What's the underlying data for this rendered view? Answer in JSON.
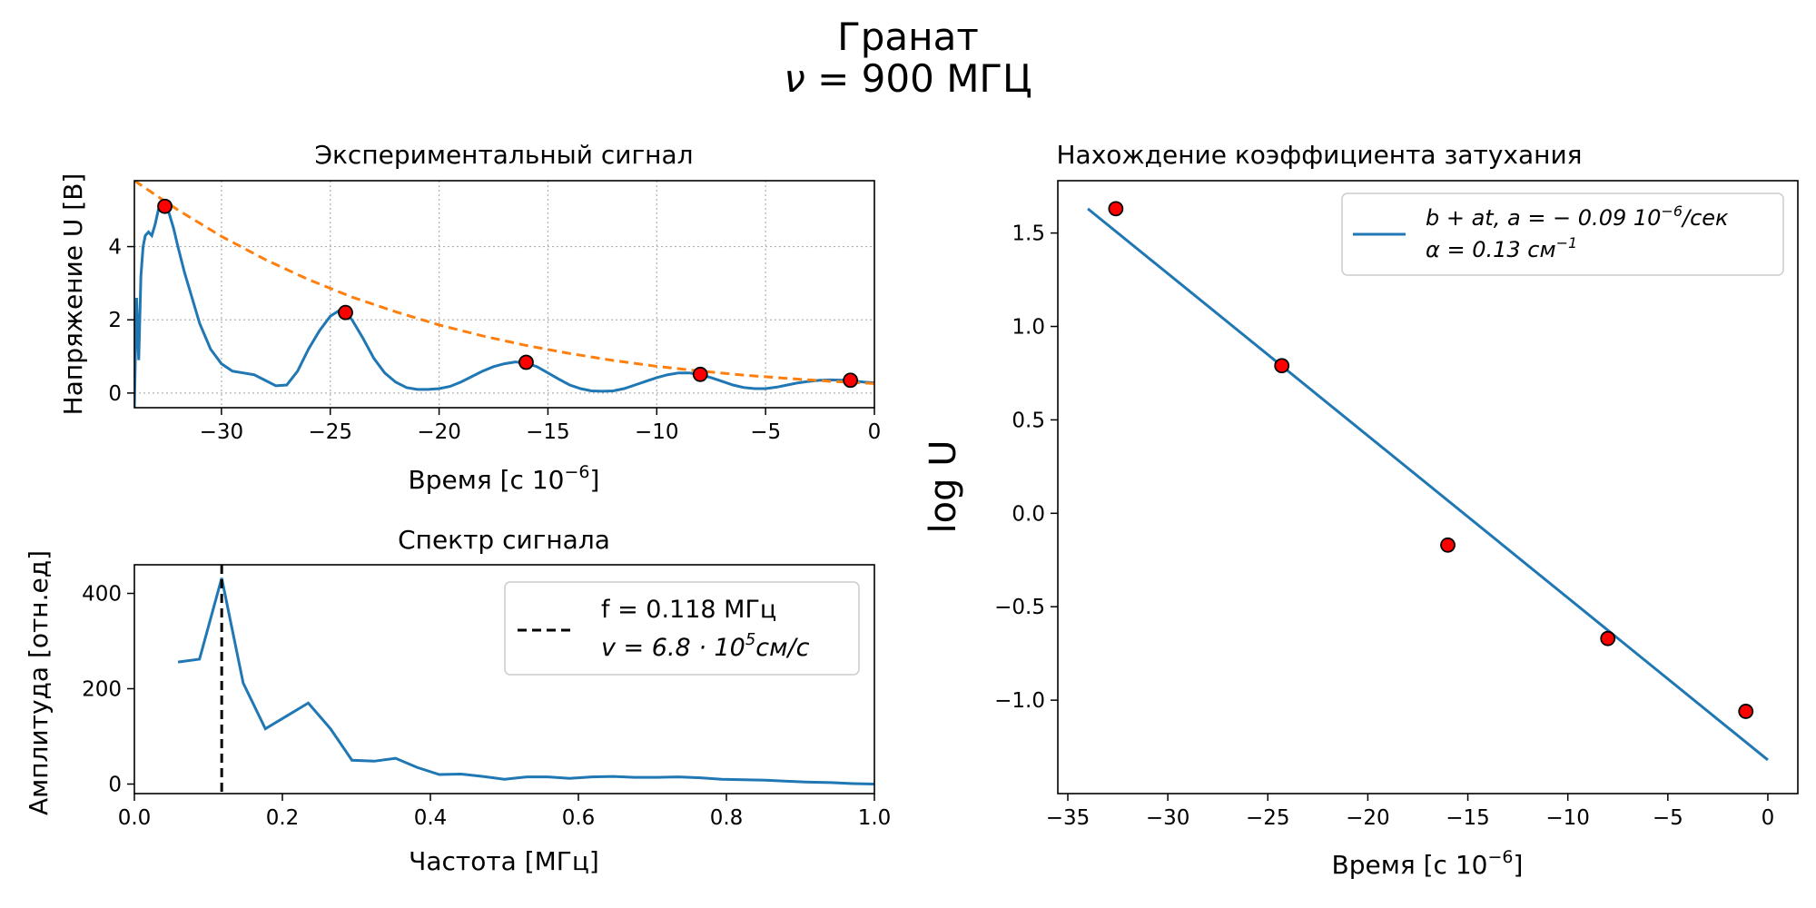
{
  "figure": {
    "title": "Гранат",
    "subtitle_symbol": "ν",
    "subtitle_value": "= 900 МГЦ"
  },
  "chart_data": [
    {
      "id": "signal",
      "type": "line",
      "title": "Экспериментальный сигнал",
      "xlabel": "Время [с 10",
      "xlabel_exp": "−6",
      "xlabel_close": "]",
      "ylabel": "Напряжение U [В]",
      "xlim": [
        -34,
        0
      ],
      "ylim": [
        -0.4,
        5.8
      ],
      "xticks": [
        -30,
        -25,
        -20,
        -15,
        -10,
        -5,
        0
      ],
      "xtick_labels": [
        "−30",
        "−25",
        "−20",
        "−15",
        "−10",
        "−5",
        "0"
      ],
      "yticks": [
        0,
        2,
        4
      ],
      "ytick_labels": [
        "0",
        "2",
        "4"
      ],
      "grid": true,
      "colors": {
        "signal": "#1f77b4",
        "envelope": "#ff7f0e",
        "peaks": "#ff0000"
      },
      "signal": {
        "x": [
          -34,
          -33.9,
          -33.8,
          -33.7,
          -33.6,
          -33.5,
          -33.35,
          -33.2,
          -33.05,
          -32.9,
          -32.75,
          -32.6,
          -32.4,
          -32.2,
          -32.0,
          -31.7,
          -31.4,
          -31.0,
          -30.5,
          -30.0,
          -29.5,
          -29.0,
          -28.5,
          -28.0,
          -27.5,
          -27.0,
          -26.5,
          -26.0,
          -25.5,
          -25.0,
          -24.6,
          -24.3,
          -24.0,
          -23.5,
          -23.0,
          -22.5,
          -22.0,
          -21.5,
          -21.0,
          -20.5,
          -20.0,
          -19.5,
          -19.0,
          -18.5,
          -18.0,
          -17.5,
          -17.0,
          -16.5,
          -16.0,
          -15.5,
          -15.0,
          -14.5,
          -14.0,
          -13.5,
          -13.0,
          -12.5,
          -12.0,
          -11.5,
          -11.0,
          -10.5,
          -10.0,
          -9.5,
          -9.0,
          -8.5,
          -8.0,
          -7.5,
          -7.0,
          -6.5,
          -6.0,
          -5.5,
          -5.0,
          -4.5,
          -4.0,
          -3.5,
          -3.0,
          -2.5,
          -2.0,
          -1.5,
          -1.0,
          -0.5,
          0.0
        ],
        "y": [
          -0.4,
          2.6,
          0.9,
          3.2,
          4.0,
          4.3,
          4.4,
          4.3,
          4.6,
          5.0,
          5.2,
          5.15,
          4.9,
          4.5,
          4.0,
          3.3,
          2.7,
          1.9,
          1.2,
          0.8,
          0.6,
          0.55,
          0.5,
          0.35,
          0.2,
          0.22,
          0.6,
          1.2,
          1.7,
          2.1,
          2.25,
          2.2,
          2.0,
          1.5,
          0.95,
          0.55,
          0.3,
          0.15,
          0.1,
          0.1,
          0.12,
          0.18,
          0.3,
          0.45,
          0.6,
          0.72,
          0.8,
          0.85,
          0.82,
          0.72,
          0.55,
          0.38,
          0.22,
          0.12,
          0.06,
          0.05,
          0.06,
          0.12,
          0.22,
          0.32,
          0.42,
          0.5,
          0.55,
          0.55,
          0.5,
          0.42,
          0.32,
          0.22,
          0.15,
          0.12,
          0.12,
          0.16,
          0.22,
          0.28,
          0.32,
          0.35,
          0.36,
          0.35,
          0.33,
          0.3,
          0.28
        ]
      },
      "envelope": {
        "x": [
          -34,
          -32,
          -30,
          -28,
          -26,
          -24,
          -22,
          -20,
          -18,
          -16,
          -14,
          -12,
          -10,
          -8,
          -6,
          -4,
          -2,
          0
        ],
        "y": [
          5.8,
          5.0,
          4.28,
          3.65,
          3.1,
          2.62,
          2.22,
          1.86,
          1.56,
          1.3,
          1.08,
          0.89,
          0.73,
          0.6,
          0.49,
          0.4,
          0.32,
          0.26
        ]
      },
      "peaks": {
        "x": [
          -32.6,
          -24.3,
          -16.0,
          -8.0,
          -1.1
        ],
        "y": [
          5.1,
          2.2,
          0.84,
          0.51,
          0.35
        ]
      }
    },
    {
      "id": "spectrum",
      "type": "line",
      "title": "Спектр сигнала",
      "xlabel": "Частота [МГц]",
      "ylabel": "Амплитуда [отн.ед]",
      "xlim": [
        0,
        1.0
      ],
      "ylim": [
        -20,
        460
      ],
      "xticks": [
        0,
        0.2,
        0.4,
        0.6,
        0.8,
        1.0
      ],
      "xtick_labels": [
        "0.0",
        "0.2",
        "0.4",
        "0.6",
        "0.8",
        "1.0"
      ],
      "yticks": [
        0,
        200,
        400
      ],
      "ytick_labels": [
        "0",
        "200",
        "400"
      ],
      "colors": {
        "spectrum": "#1f77b4",
        "marker": "#000000"
      },
      "spectrum": {
        "x": [
          0.059,
          0.088,
          0.118,
          0.147,
          0.177,
          0.206,
          0.235,
          0.265,
          0.294,
          0.324,
          0.353,
          0.382,
          0.412,
          0.441,
          0.471,
          0.5,
          0.53,
          0.559,
          0.588,
          0.618,
          0.647,
          0.676,
          0.706,
          0.735,
          0.765,
          0.794,
          0.824,
          0.853,
          0.882,
          0.912,
          0.941,
          0.971,
          1.0
        ],
        "y": [
          256,
          262,
          432,
          212,
          116,
          143,
          170,
          116,
          50,
          48,
          54,
          35,
          20,
          21,
          16,
          10,
          15,
          15,
          12,
          15,
          16,
          14,
          14,
          15,
          13,
          10,
          9,
          8,
          6,
          4,
          3,
          1,
          0
        ]
      },
      "marker_x": 0.118,
      "legend": {
        "line1": "f = 0.118 МГц",
        "line2_prefix": "v = 6.8 · 10",
        "line2_exp": "5",
        "line2_suffix": "см/с"
      }
    },
    {
      "id": "fit",
      "type": "scatter",
      "title": "Нахождение коэффициента затухания",
      "xlabel": "Время [с 10",
      "xlabel_exp": "−6",
      "xlabel_close": "]",
      "ylabel": "log U",
      "xlim": [
        -35.5,
        1.5
      ],
      "ylim": [
        -1.5,
        1.78
      ],
      "xticks": [
        -35,
        -30,
        -25,
        -20,
        -15,
        -10,
        -5,
        0
      ],
      "xtick_labels": [
        "−35",
        "−30",
        "−25",
        "−20",
        "−15",
        "−10",
        "−5",
        "0"
      ],
      "yticks": [
        -1.0,
        -0.5,
        0.0,
        0.5,
        1.0,
        1.5
      ],
      "ytick_labels": [
        "−1.0",
        "−0.5",
        "0.0",
        "0.5",
        "1.0",
        "1.5"
      ],
      "colors": {
        "fit": "#1f77b4",
        "points": "#ff0000"
      },
      "fit_line": {
        "x": [
          -34.0,
          0.0
        ],
        "y": [
          1.63,
          -1.32
        ]
      },
      "points": {
        "x": [
          -32.6,
          -24.3,
          -16.0,
          -8.0,
          -1.1
        ],
        "y": [
          1.63,
          0.79,
          -0.17,
          -0.67,
          -1.06
        ]
      },
      "legend": {
        "line1": "b + at, a = − 0.09  10",
        "line1_exp": "−6",
        "line1_suffix": "/сек",
        "line2": "α = 0.13 см",
        "line2_exp": "−1"
      }
    }
  ]
}
